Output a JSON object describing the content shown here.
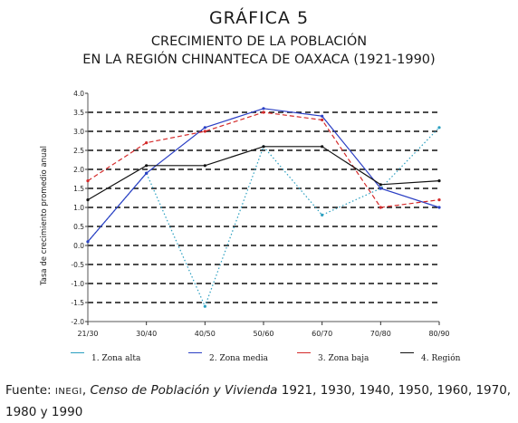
{
  "title": "GRÁFICA 5",
  "subtitle_line1": "CRECIMIENTO DE LA POBLACIÓN",
  "subtitle_line2": "EN LA REGIÓN CHINANTECA DE OAXACA (1921-1990)",
  "source": {
    "prefix": "Fuente: ",
    "org": "INEGI",
    "separator": ", ",
    "work": "Censo de Población y Vivienda",
    "years": " 1921, 1930, 1940, 1950, 1960, 1970, 1980 y 1990"
  },
  "chart_data": {
    "type": "line",
    "ylabel": "Tasa de crecimiento promedio anual",
    "xlabel": "",
    "ylim": [
      -2.0,
      4.0
    ],
    "y_ticks": [
      -2.0,
      -1.5,
      -1.0,
      -0.5,
      0.0,
      0.5,
      1.0,
      1.5,
      2.0,
      2.5,
      3.0,
      3.5,
      4.0
    ],
    "y_tick_labels": [
      "-2.0",
      "-1.5",
      "-1.0",
      "-0.5",
      "0.0",
      "0.5",
      "1.0",
      "1.5",
      "2.0",
      "2.5",
      "3.0",
      "3.5",
      "4.0"
    ],
    "categories": [
      "21/30",
      "30/40",
      "40/50",
      "50/60",
      "60/70",
      "70/80",
      "80/90"
    ],
    "grid": "horizontal dashed",
    "legend_position": "bottom",
    "series": [
      {
        "name": "1. Zona alta",
        "color": "#2a9fc0",
        "style": "dotted",
        "values": [
          0.1,
          1.9,
          -1.6,
          2.6,
          0.8,
          1.5,
          3.1
        ]
      },
      {
        "name": "2. Zona media",
        "color": "#2b3fc4",
        "style": "solid",
        "values": [
          0.1,
          1.9,
          3.1,
          3.6,
          3.4,
          1.5,
          1.0
        ]
      },
      {
        "name": "3. Zona baja",
        "color": "#d42a2a",
        "style": "dashed",
        "values": [
          1.7,
          2.7,
          3.0,
          3.5,
          3.3,
          1.0,
          1.2
        ]
      },
      {
        "name": "4. Región",
        "color": "#111111",
        "style": "solid",
        "values": [
          1.2,
          2.1,
          2.1,
          2.6,
          2.6,
          1.6,
          1.7
        ]
      }
    ]
  }
}
